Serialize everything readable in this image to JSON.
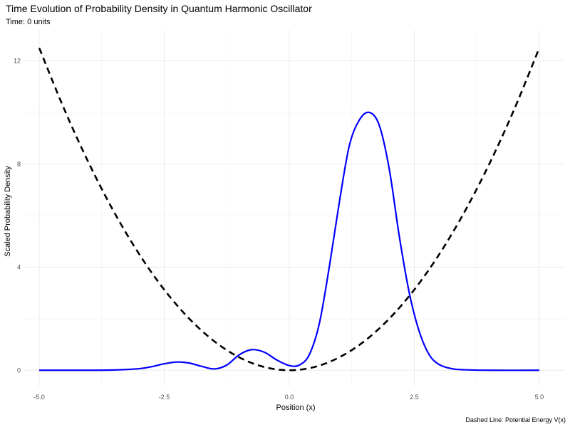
{
  "chart_data": {
    "type": "line",
    "title": "Time Evolution of Probability Density in Quantum Harmonic Oscillator",
    "subtitle": "Time: 0 units",
    "xlabel": "Position (x)",
    "ylabel": "Scaled Probability Density",
    "caption": "Dashed Line: Potential Energy V(x)",
    "xlim": [
      -5.3,
      5.5
    ],
    "ylim": [
      -0.6,
      13.2
    ],
    "x_ticks": [
      -5.0,
      -2.5,
      0.0,
      2.5,
      5.0
    ],
    "x_tick_labels": [
      "-5.0",
      "-2.5",
      "0.0",
      "2.5",
      "5.0"
    ],
    "y_ticks": [
      0,
      4,
      8,
      12
    ],
    "y_tick_labels": [
      "0",
      "4",
      "8",
      "12"
    ],
    "grid": true,
    "series": [
      {
        "style": "solid",
        "color": "#0000ff",
        "x": [
          -5.0,
          -4.0,
          -3.5,
          -3.0,
          -2.75,
          -2.5,
          -2.25,
          -2.0,
          -1.75,
          -1.5,
          -1.25,
          -1.0,
          -0.75,
          -0.5,
          -0.25,
          0.0,
          0.2,
          0.4,
          0.6,
          0.8,
          1.0,
          1.2,
          1.4,
          1.6,
          1.8,
          2.0,
          2.2,
          2.4,
          2.6,
          2.8,
          3.0,
          3.25,
          3.5,
          4.0,
          5.0
        ],
        "y": [
          0,
          0,
          0.01,
          0.06,
          0.14,
          0.25,
          0.32,
          0.28,
          0.15,
          0.05,
          0.2,
          0.6,
          0.8,
          0.7,
          0.4,
          0.18,
          0.2,
          0.6,
          1.8,
          4.0,
          6.5,
          8.7,
          9.7,
          10.0,
          9.5,
          7.8,
          5.2,
          3.0,
          1.5,
          0.6,
          0.22,
          0.06,
          0.02,
          0,
          0
        ]
      },
      {
        "name": "Potential Energy V(x)",
        "style": "dashed",
        "color": "#000000",
        "x": [
          -5.0,
          -4.5,
          -4.0,
          -3.5,
          -3.0,
          -2.5,
          -2.0,
          -1.5,
          -1.0,
          -0.5,
          0.0,
          0.5,
          1.0,
          1.5,
          2.0,
          2.5,
          3.0,
          3.5,
          4.0,
          4.5,
          5.0
        ],
        "y": [
          12.5,
          10.125,
          8.0,
          6.125,
          4.5,
          3.125,
          2.0,
          1.125,
          0.5,
          0.125,
          0.0,
          0.125,
          0.5,
          1.125,
          2.0,
          3.125,
          4.5,
          6.125,
          8.0,
          10.125,
          12.5
        ]
      }
    ]
  }
}
